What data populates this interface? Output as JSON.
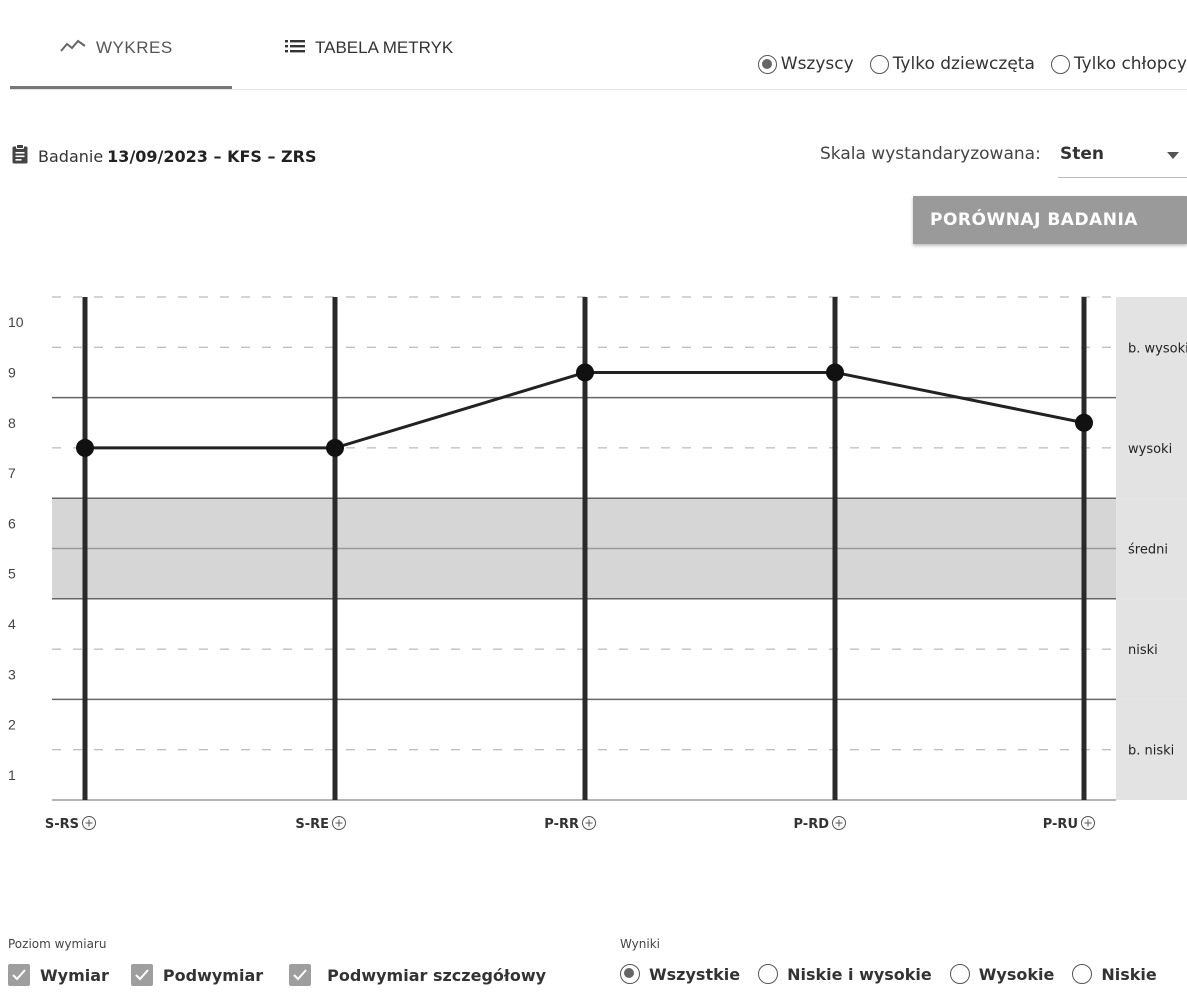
{
  "tabs": [
    {
      "label": "WYKRES",
      "icon": "line-chart-icon",
      "active": true
    },
    {
      "label": "TABELA METRYK",
      "icon": "list-icon",
      "active": false
    }
  ],
  "gender_filter": {
    "options": [
      "Wszyscy",
      "Tylko dziewczęta",
      "Tylko chłopcy"
    ],
    "selected": "Wszyscy"
  },
  "study": {
    "icon": "clipboard-icon",
    "label": "Badanie",
    "value": "13/09/2023 – KFS – ZRS"
  },
  "scale": {
    "label": "Skala wystandaryzowana:",
    "value": "Sten"
  },
  "compare_button": "PORÓWNAJ BADANIA",
  "chart_data": {
    "type": "line",
    "categories": [
      "S-RS",
      "S-RE",
      "P-RR",
      "P-RD",
      "P-RU"
    ],
    "values": [
      7.5,
      7.5,
      9,
      9,
      8
    ],
    "ylim": [
      0.5,
      10.5
    ],
    "yticks": [
      1,
      2,
      3,
      4,
      5,
      6,
      7,
      8,
      9,
      10
    ],
    "bands": [
      {
        "label": "b. niski",
        "from": 0.5,
        "to": 2.5
      },
      {
        "label": "niski",
        "from": 2.5,
        "to": 4.5
      },
      {
        "label": "średni",
        "from": 4.5,
        "to": 6.5,
        "highlight": true
      },
      {
        "label": "wysoki",
        "from": 6.5,
        "to": 8.5
      },
      {
        "label": "b. wysoki",
        "from": 8.5,
        "to": 10.5
      }
    ],
    "colors": {
      "line": "#222222",
      "band_highlight": "#d6d6d6",
      "band_label_bg": "#e3e3e3"
    }
  },
  "level_filter": {
    "title": "Poziom wymiaru",
    "options": [
      "Wymiar",
      "Podwymiar",
      "Podwymiar szczegółowy"
    ],
    "checked": [
      true,
      true,
      true
    ]
  },
  "results_filter": {
    "title": "Wyniki",
    "options": [
      "Wszystkie",
      "Niskie i wysokie",
      "Wysokie",
      "Niskie"
    ],
    "selected": "Wszystkie"
  }
}
